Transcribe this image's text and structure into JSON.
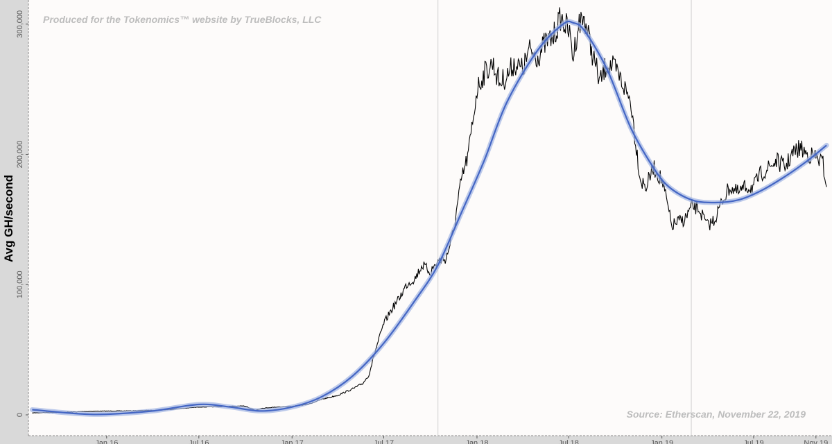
{
  "chart_data": {
    "type": "line",
    "title": "",
    "xlabel": "",
    "ylabel": "Avg GH/second",
    "annotations": {
      "top": "Produced for the Tokenomics™ website by TrueBlocks, LLC",
      "bottom": "Source: Etherscan, November 22, 2019"
    },
    "xlim": [
      "2015-08-01",
      "2019-11-30"
    ],
    "ylim": [
      0,
      310000
    ],
    "y_ticks": [
      0,
      100000,
      200000,
      300000
    ],
    "y_tick_labels": [
      "0",
      "100,000",
      "200,000",
      "300,000"
    ],
    "x_ticks": [
      {
        "date": "2016-01-01",
        "label": "Jan 16"
      },
      {
        "date": "2016-07-01",
        "label": "Jul 16"
      },
      {
        "date": "2017-01-01",
        "label": "Jan 17"
      },
      {
        "date": "2017-07-01",
        "label": "Jul 17"
      },
      {
        "date": "2018-01-01",
        "label": "Jan 18"
      },
      {
        "date": "2018-07-01",
        "label": "Jul 18"
      },
      {
        "date": "2019-01-01",
        "label": "Jan 19"
      },
      {
        "date": "2019-07-01",
        "label": "Jul 19"
      },
      {
        "date": "2019-11-01",
        "label": "Nov 19"
      }
    ],
    "vertical_markers": [
      "2017-10-16",
      "2019-02-28"
    ],
    "grid": false,
    "colors": {
      "background": "#fdfbfa",
      "outer": "#d9d9d9",
      "series": "#000000",
      "smooth": "#4466c4",
      "smooth_band": "#9fb3e3",
      "marker": "#cfcfcf"
    },
    "series": [
      {
        "key": "hashrate",
        "style": "line",
        "x": [
          "2015-08-07",
          "2015-09-01",
          "2015-10-01",
          "2015-11-01",
          "2015-12-01",
          "2016-01-01",
          "2016-02-01",
          "2016-03-01",
          "2016-04-01",
          "2016-05-01",
          "2016-06-01",
          "2016-07-01",
          "2016-08-01",
          "2016-09-01",
          "2016-10-01",
          "2016-10-20",
          "2016-11-01",
          "2016-12-01",
          "2017-01-01",
          "2017-02-01",
          "2017-03-01",
          "2017-04-01",
          "2017-05-01",
          "2017-05-20",
          "2017-06-01",
          "2017-06-15",
          "2017-07-01",
          "2017-07-15",
          "2017-08-01",
          "2017-08-15",
          "2017-09-01",
          "2017-09-15",
          "2017-10-01",
          "2017-10-16",
          "2017-11-01",
          "2017-11-15",
          "2017-12-01",
          "2017-12-15",
          "2018-01-01",
          "2018-01-15",
          "2018-02-01",
          "2018-02-15",
          "2018-03-01",
          "2018-03-15",
          "2018-04-01",
          "2018-04-15",
          "2018-05-01",
          "2018-05-15",
          "2018-06-01",
          "2018-06-15",
          "2018-07-01",
          "2018-07-10",
          "2018-07-20",
          "2018-08-01",
          "2018-08-15",
          "2018-09-01",
          "2018-09-15",
          "2018-10-01",
          "2018-10-15",
          "2018-11-01",
          "2018-11-10",
          "2018-11-20",
          "2018-12-01",
          "2018-12-15",
          "2019-01-01",
          "2019-01-10",
          "2019-01-20",
          "2019-02-01",
          "2019-02-15",
          "2019-03-01",
          "2019-03-15",
          "2019-04-01",
          "2019-04-15",
          "2019-05-01",
          "2019-05-15",
          "2019-06-01",
          "2019-06-15",
          "2019-07-01",
          "2019-07-15",
          "2019-08-01",
          "2019-08-15",
          "2019-09-01",
          "2019-09-15",
          "2019-10-01",
          "2019-10-15",
          "2019-11-01",
          "2019-11-15",
          "2019-11-22"
        ],
        "y": [
          1500,
          1800,
          2000,
          2300,
          2700,
          2900,
          3000,
          3200,
          3500,
          4000,
          5000,
          6000,
          6200,
          6500,
          6800,
          3500,
          5000,
          6000,
          6500,
          8000,
          12000,
          15000,
          20000,
          24000,
          30000,
          50000,
          70000,
          80000,
          90000,
          100000,
          105000,
          115000,
          110000,
          118000,
          120000,
          140000,
          180000,
          200000,
          250000,
          262000,
          270000,
          255000,
          260000,
          270000,
          265000,
          280000,
          275000,
          285000,
          290000,
          305000,
          295000,
          275000,
          300000,
          305000,
          280000,
          255000,
          270000,
          265000,
          255000,
          240000,
          210000,
          180000,
          175000,
          190000,
          180000,
          165000,
          145000,
          148000,
          150000,
          160000,
          158000,
          145000,
          150000,
          165000,
          175000,
          170000,
          175000,
          175000,
          185000,
          190000,
          195000,
          190000,
          200000,
          205000,
          200000,
          198000,
          193000,
          175000
        ]
      },
      {
        "key": "trend",
        "style": "smooth",
        "x": [
          "2015-08-07",
          "2015-11-01",
          "2016-01-01",
          "2016-04-01",
          "2016-07-01",
          "2016-09-01",
          "2016-11-01",
          "2017-01-01",
          "2017-03-01",
          "2017-05-01",
          "2017-07-01",
          "2017-09-01",
          "2017-10-16",
          "2017-12-01",
          "2018-01-15",
          "2018-03-01",
          "2018-05-01",
          "2018-06-20",
          "2018-07-10",
          "2018-08-01",
          "2018-09-15",
          "2018-11-01",
          "2018-12-15",
          "2019-01-15",
          "2019-03-01",
          "2019-04-15",
          "2019-06-01",
          "2019-07-15",
          "2019-09-01",
          "2019-10-15",
          "2019-11-22"
        ],
        "y": [
          4000,
          1000,
          500,
          3000,
          8000,
          6000,
          3000,
          6000,
          14000,
          30000,
          55000,
          88000,
          115000,
          155000,
          195000,
          240000,
          280000,
          300000,
          301000,
          295000,
          265000,
          220000,
          190000,
          175000,
          165000,
          163000,
          165000,
          172000,
          183000,
          195000,
          207000
        ]
      }
    ]
  }
}
